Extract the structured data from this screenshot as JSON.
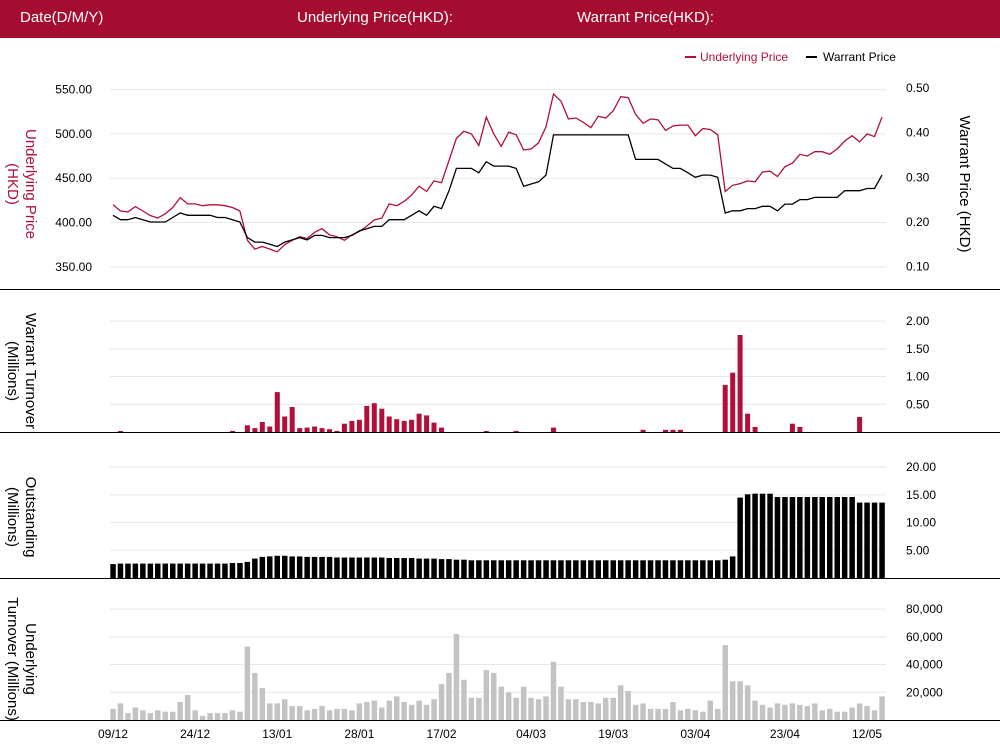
{
  "header": {
    "date_label": "Date(D/M/Y)",
    "underlying_label": "Underlying Price(HKD):",
    "warrant_label": "Warrant Price(HKD):"
  },
  "colors": {
    "brand": "#a50d30",
    "underlying": "#b0103a",
    "warrant": "#000000",
    "underlying_turnover": "#c3c3c3"
  },
  "chart_data": [
    {
      "type": "line",
      "legend": [
        "Underlying Price",
        "Warrant Price"
      ],
      "legend_position": "top-right",
      "ylabel_left": "Underlying Price (HKD)",
      "ylabel_right": "Warrant  Price (HKD)",
      "yticks_left": [
        "350.00",
        "400.00",
        "450.00",
        "500.00",
        "550.00"
      ],
      "yticks_right": [
        "0.10",
        "0.20",
        "0.30",
        "0.40",
        "0.50"
      ],
      "ylim_left": [
        325,
        562
      ],
      "ylim_right": [
        0.05,
        0.52
      ],
      "series": [
        {
          "name": "Underlying Price",
          "axis": "left",
          "values": [
            420,
            413,
            412,
            418,
            413,
            408,
            405,
            410,
            417,
            428,
            421,
            421,
            419,
            420,
            420,
            419,
            417,
            413,
            380,
            370,
            373,
            370,
            367,
            375,
            380,
            384,
            382,
            389,
            393,
            386,
            384,
            380,
            386,
            390,
            396,
            403,
            405,
            421,
            419,
            424,
            431,
            441,
            435,
            447,
            445,
            470,
            495,
            503,
            500,
            487,
            519,
            500,
            486,
            502,
            499,
            482,
            483,
            490,
            508,
            545,
            537,
            517,
            518,
            513,
            507,
            520,
            518,
            526,
            542,
            541,
            522,
            512,
            517,
            516,
            504,
            509,
            510,
            510,
            498,
            506,
            505,
            499,
            435,
            442,
            444,
            447,
            446,
            457,
            458,
            452,
            463,
            467,
            477,
            475,
            480,
            480,
            477,
            483,
            492,
            498,
            491,
            500,
            497,
            519
          ]
        },
        {
          "name": "Warrant Price",
          "axis": "right",
          "values": [
            0.215,
            0.205,
            0.205,
            0.21,
            0.205,
            0.2,
            0.2,
            0.2,
            0.21,
            0.22,
            0.215,
            0.215,
            0.215,
            0.215,
            0.21,
            0.21,
            0.205,
            0.2,
            0.165,
            0.155,
            0.155,
            0.15,
            0.145,
            0.155,
            0.16,
            0.165,
            0.16,
            0.17,
            0.17,
            0.165,
            0.165,
            0.165,
            0.17,
            0.18,
            0.185,
            0.19,
            0.19,
            0.205,
            0.205,
            0.205,
            0.215,
            0.225,
            0.215,
            0.235,
            0.23,
            0.27,
            0.32,
            0.32,
            0.32,
            0.31,
            0.335,
            0.325,
            0.325,
            0.325,
            0.32,
            0.28,
            0.285,
            0.29,
            0.305,
            0.395,
            0.395,
            0.395,
            0.395,
            0.395,
            0.395,
            0.395,
            0.395,
            0.395,
            0.395,
            0.395,
            0.34,
            0.34,
            0.34,
            0.34,
            0.33,
            0.32,
            0.32,
            0.31,
            0.3,
            0.305,
            0.305,
            0.3,
            0.22,
            0.225,
            0.225,
            0.23,
            0.23,
            0.235,
            0.235,
            0.225,
            0.24,
            0.24,
            0.25,
            0.25,
            0.255,
            0.255,
            0.255,
            0.255,
            0.27,
            0.27,
            0.27,
            0.275,
            0.275,
            0.305
          ]
        }
      ]
    },
    {
      "type": "bar",
      "ylabel": "Warrant  Turnover (Millions)",
      "yticks": [
        "0.50",
        "1.00",
        "1.50",
        "2.00"
      ],
      "ylim": [
        0,
        2.2
      ],
      "series": [
        {
          "name": "Warrant Turnover",
          "values": [
            0,
            0.01,
            0,
            0,
            0,
            0,
            0,
            0,
            0,
            0,
            0,
            0,
            0,
            0,
            0,
            0,
            0.02,
            0,
            0.12,
            0.07,
            0.18,
            0.1,
            0.72,
            0.28,
            0.45,
            0.07,
            0.08,
            0.1,
            0.07,
            0.05,
            0.02,
            0.15,
            0.2,
            0.22,
            0.47,
            0.52,
            0.42,
            0.28,
            0.23,
            0.2,
            0.22,
            0.33,
            0.3,
            0.17,
            0.08,
            0,
            0,
            0,
            0,
            0,
            0.01,
            0,
            0,
            0,
            0.02,
            0,
            0,
            0,
            0,
            0.08,
            0,
            0,
            0,
            0,
            0,
            0,
            0,
            0,
            0,
            0,
            0,
            0.04,
            0,
            0,
            0.04,
            0.04,
            0.04,
            0,
            0,
            0,
            0,
            0,
            0.85,
            1.07,
            1.75,
            0.33,
            0.09,
            0,
            0,
            0,
            0,
            0.15,
            0.09,
            0,
            0,
            0,
            0,
            0,
            0,
            0,
            0.27,
            0,
            0,
            0
          ]
        }
      ]
    },
    {
      "type": "bar",
      "ylabel": "Outstanding (Millions)",
      "yticks": [
        "5.00",
        "10.00",
        "15.00",
        "20.00"
      ],
      "ylim": [
        0,
        22
      ],
      "series": [
        {
          "name": "Outstanding",
          "values": [
            2.5,
            2.6,
            2.6,
            2.6,
            2.6,
            2.6,
            2.6,
            2.6,
            2.6,
            2.6,
            2.6,
            2.6,
            2.6,
            2.6,
            2.6,
            2.6,
            2.7,
            2.7,
            2.9,
            3.5,
            3.8,
            3.9,
            4.0,
            4.0,
            3.9,
            3.9,
            3.8,
            3.8,
            3.8,
            3.8,
            3.7,
            3.7,
            3.7,
            3.7,
            3.7,
            3.7,
            3.7,
            3.6,
            3.6,
            3.6,
            3.6,
            3.5,
            3.5,
            3.5,
            3.4,
            3.4,
            3.3,
            3.3,
            3.2,
            3.2,
            3.2,
            3.2,
            3.2,
            3.2,
            3.2,
            3.2,
            3.2,
            3.2,
            3.2,
            3.2,
            3.2,
            3.2,
            3.2,
            3.2,
            3.2,
            3.2,
            3.2,
            3.2,
            3.2,
            3.2,
            3.2,
            3.2,
            3.2,
            3.2,
            3.2,
            3.2,
            3.2,
            3.2,
            3.2,
            3.2,
            3.2,
            3.2,
            3.3,
            3.9,
            14.5,
            15.1,
            15.2,
            15.2,
            15.2,
            14.6,
            14.6,
            14.6,
            14.6,
            14.6,
            14.6,
            14.6,
            14.6,
            14.6,
            14.6,
            14.6,
            13.6,
            13.6,
            13.6,
            13.6
          ]
        }
      ]
    },
    {
      "type": "bar",
      "ylabel": "Underlying Turnover (Millions)",
      "yticks": [
        "20,000",
        "40,000",
        "60,000",
        "80,000"
      ],
      "ylim": [
        0,
        88000
      ],
      "series": [
        {
          "name": "Underlying Turnover",
          "values": [
            8000,
            12000,
            5000,
            9000,
            7000,
            5000,
            7000,
            6000,
            6000,
            13000,
            18000,
            7000,
            3000,
            5000,
            5000,
            5000,
            7000,
            6000,
            53000,
            34000,
            23000,
            12000,
            12000,
            15000,
            10000,
            10000,
            7000,
            8000,
            10000,
            7000,
            8000,
            8000,
            7000,
            12000,
            13000,
            14000,
            9000,
            14000,
            17000,
            13000,
            11000,
            14000,
            11000,
            15000,
            26000,
            34000,
            62000,
            29000,
            16000,
            16000,
            36000,
            34000,
            24000,
            20000,
            16000,
            24000,
            16000,
            15000,
            17000,
            42000,
            24000,
            15000,
            15000,
            13000,
            13000,
            12000,
            16000,
            16000,
            25000,
            21000,
            11000,
            12000,
            8000,
            8000,
            8000,
            13000,
            7000,
            8000,
            7000,
            6000,
            14000,
            8000,
            54000,
            28000,
            28000,
            25000,
            14000,
            11000,
            9000,
            12000,
            11000,
            12000,
            11000,
            10000,
            12000,
            7000,
            8000,
            6000,
            6000,
            9000,
            12000,
            10000,
            7000,
            17000
          ]
        }
      ]
    }
  ],
  "x_axis": {
    "tick_labels": [
      "09/12",
      "24/12",
      "13/01",
      "28/01",
      "17/02",
      "04/03",
      "19/03",
      "03/04",
      "23/04",
      "12/05"
    ],
    "tick_index": [
      0,
      11,
      22,
      33,
      44,
      56,
      67,
      78,
      90,
      101
    ]
  }
}
